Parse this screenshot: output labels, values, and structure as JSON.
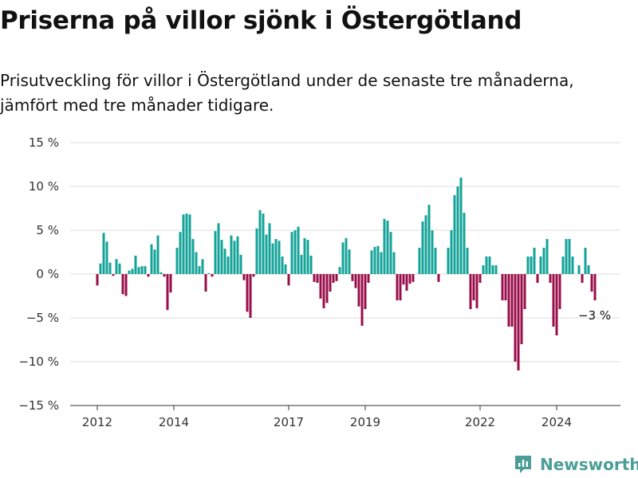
{
  "title": "Priserna på villor sjönk i Östergötland",
  "subtitle": "Prisutveckling för villor i Östergötland under de senaste tre månaderna, jämfört med tre månader tidigare.",
  "brand": "Newsworthy",
  "colors": {
    "positive": "#13a398",
    "negative": "#990e4a",
    "grid": "#dddddd",
    "axis": "#333333",
    "brand": "#4a9e97"
  },
  "chart_data": {
    "type": "bar",
    "unit": "%",
    "ylim": [
      -15,
      15
    ],
    "y_ticks": [
      {
        "value": 15,
        "label": "15 %"
      },
      {
        "value": 10,
        "label": "10 %"
      },
      {
        "value": 5,
        "label": "5 %"
      },
      {
        "value": 0,
        "label": "0 %"
      },
      {
        "value": -5,
        "label": "−5 %"
      },
      {
        "value": -10,
        "label": "−10 %"
      },
      {
        "value": -15,
        "label": "−15 %"
      }
    ],
    "x_start": "2012-01",
    "x_ticks": [
      {
        "date": "2012-01",
        "label": "2012"
      },
      {
        "date": "2014-01",
        "label": "2014"
      },
      {
        "date": "2017-01",
        "label": "2017"
      },
      {
        "date": "2019-01",
        "label": "2019"
      },
      {
        "date": "2022-01",
        "label": "2022"
      },
      {
        "date": "2024-01",
        "label": "2024"
      }
    ],
    "grid": true,
    "last_label": "−3 %",
    "values": [
      -1.3,
      1.2,
      4.7,
      3.7,
      1.3,
      -0.2,
      1.7,
      1.2,
      -2.3,
      -2.5,
      0.4,
      0.6,
      2.1,
      0.8,
      0.9,
      0.9,
      -0.3,
      3.4,
      2.8,
      4.4,
      0.2,
      -0.3,
      -4.1,
      -2.1,
      0,
      3.0,
      4.8,
      6.8,
      6.9,
      6.8,
      4.0,
      2.5,
      0.9,
      1.7,
      -2.0,
      0.1,
      -0.3,
      4.9,
      5.8,
      3.9,
      2.9,
      2.0,
      4.4,
      3.8,
      4.3,
      2.2,
      -0.7,
      -4.3,
      -5.0,
      -0.3,
      5.2,
      7.3,
      6.9,
      4.5,
      5.8,
      3.5,
      4.0,
      3.8,
      2.0,
      1.1,
      -1.3,
      4.8,
      5.0,
      5.4,
      2.2,
      4.1,
      3.9,
      2.1,
      -0.9,
      -1.0,
      -2.8,
      -3.9,
      -3.3,
      -2.0,
      -1.0,
      -0.8,
      0.8,
      3.6,
      4.1,
      2.8,
      -0.8,
      -1.6,
      -3.7,
      -5.9,
      -4.0,
      -1.0,
      2.7,
      3.1,
      3.2,
      2.5,
      6.3,
      6.1,
      4.8,
      2.5,
      -3.0,
      -3.0,
      -1.2,
      -1.9,
      -1.1,
      -0.9,
      0,
      3.0,
      6.0,
      6.7,
      7.9,
      5.0,
      3.0,
      -0.9,
      0,
      0,
      3.0,
      5.0,
      9.0,
      10.0,
      11.0,
      7.0,
      3.0,
      -4.0,
      -3.0,
      -3.9,
      -1.0,
      1.0,
      2.0,
      2.0,
      1.0,
      1.0,
      0,
      -3.0,
      -3.0,
      -6.0,
      -6.0,
      -10.0,
      -11.0,
      -8.0,
      -4.0,
      2.0,
      2.0,
      3.0,
      -1.0,
      2.0,
      3.0,
      4.0,
      -1.0,
      -6.0,
      -7.0,
      -4.0,
      2.0,
      4.0,
      4.0,
      2.0,
      0,
      1.0,
      -1.0,
      3.0,
      1.0,
      -2.0,
      -3.0
    ]
  }
}
